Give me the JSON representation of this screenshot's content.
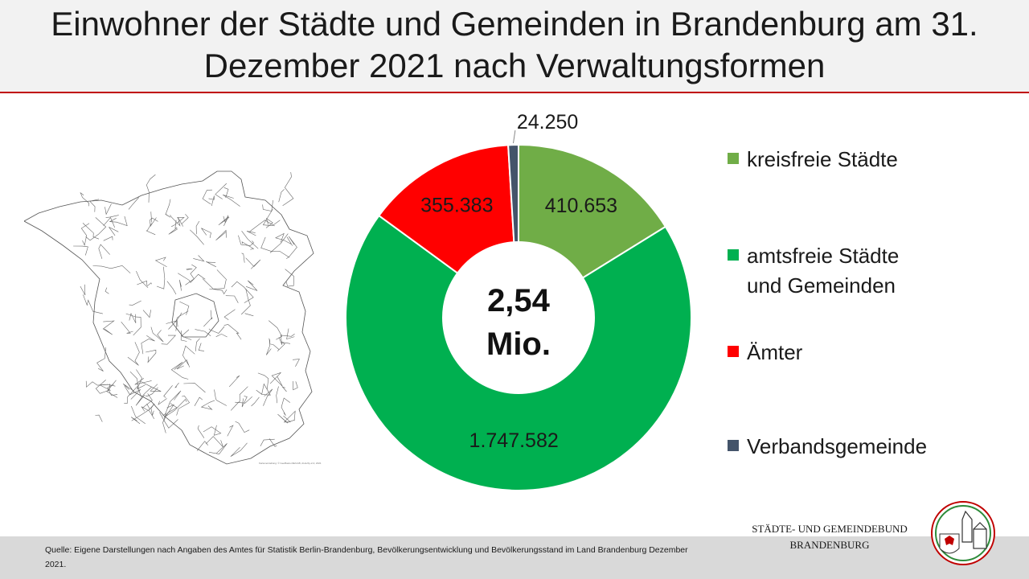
{
  "header": {
    "title": "Einwohner der Städte und Gemeinden in Brandenburg am 31. Dezember 2021 nach Verwaltungsformen"
  },
  "map": {
    "caption": "Kartenerstellung: © GeoBasis-DE/LGB, dl-de/by-2-0, 2021"
  },
  "chart_data": {
    "type": "pie",
    "title": "Einwohner der Städte und Gemeinden in Brandenburg am 31. Dezember 2021 nach Verwaltungsformen",
    "donut": true,
    "center_label": [
      "2,54",
      "Mio."
    ],
    "legend_position": "right",
    "categories": [
      "kreisfreie Städte",
      "amtsfreie Städte und Gemeinden",
      "Ämter",
      "Verbandsgemeinde"
    ],
    "values": [
      410653,
      1747582,
      355383,
      24250
    ],
    "value_labels": [
      "410.653",
      "1.747.582",
      "355.383",
      "24.250"
    ],
    "colors": [
      "#70ad47",
      "#00b050",
      "#ff0000",
      "#44546a"
    ]
  },
  "legend": [
    {
      "lines": [
        "kreisfreie Städte"
      ],
      "color": "#70ad47"
    },
    {
      "lines": [
        "amtsfreie Städte",
        "und Gemeinden"
      ],
      "color": "#00b050"
    },
    {
      "lines": [
        "Ämter"
      ],
      "color": "#ff0000"
    },
    {
      "lines": [
        "Verbandsgemeinde"
      ],
      "color": "#44546a"
    }
  ],
  "footer": {
    "source": "Quelle:  Eigene Darstellungen nach Angaben des Amtes  für Statistik Berlin-Brandenburg, Bevölkerungsentwicklung und Bevölkerungsstand im Land Brandenburg Dezember  2021."
  },
  "logo": {
    "line1": "STÄDTE-  UND GEMEINDEBUND",
    "line2": "BRANDENBURG"
  }
}
